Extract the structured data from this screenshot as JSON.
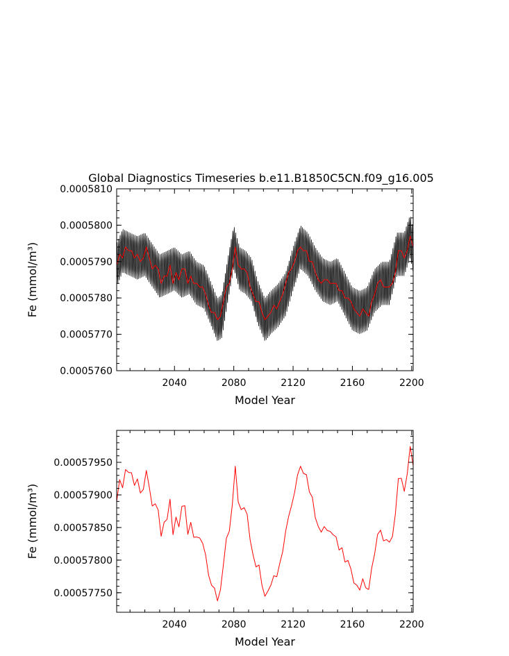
{
  "page": {
    "title": "Global Diagnostics Timeseries b.e11.B1850C5CN.f09_g16.005"
  },
  "colors": {
    "raw_series": "#000000",
    "smoothed_series": "#ff0000",
    "axes": "#000000",
    "background": "#ffffff"
  },
  "chart_data": [
    {
      "type": "line",
      "title": "Global Diagnostics Timeseries b.e11.B1850C5CN.f09_g16.005",
      "xlabel": "Model Year",
      "ylabel": "Fe (mmol/m³)",
      "xlim": [
        2001,
        2201
      ],
      "ylim": [
        0.000576,
        0.000581
      ],
      "xticks": [
        2040,
        2080,
        2120,
        2160,
        2200
      ],
      "yticks": [
        0.000576,
        0.000577,
        0.000578,
        0.000579,
        0.00058,
        0.000581
      ],
      "ytick_labels": [
        "0.0005760",
        "0.0005770",
        "0.0005780",
        "0.0005790",
        "0.0005800",
        "0.0005810"
      ],
      "grid": false,
      "legend": "none",
      "seasonal_amplitude": 6e-07,
      "series": [
        {
          "role": "monthly",
          "color": "#000000",
          "x": [
            2001,
            2005,
            2010,
            2015,
            2020,
            2025,
            2030,
            2035,
            2040,
            2045,
            2050,
            2055,
            2060,
            2065,
            2069,
            2072,
            2076,
            2080,
            2084,
            2088,
            2092,
            2096,
            2101,
            2105,
            2110,
            2115,
            2120,
            2125,
            2130,
            2135,
            2140,
            2145,
            2150,
            2155,
            2160,
            2165,
            2170,
            2175,
            2180,
            2185,
            2190,
            2195,
            2199,
            2201
          ],
          "y": [
            0.0005789,
            0.0005793,
            0.0005792,
            0.0005791,
            0.0005792,
            0.0005789,
            0.0005786,
            0.0005787,
            0.0005788,
            0.0005786,
            0.0005787,
            0.0005784,
            0.0005783,
            0.0005778,
            0.0005774,
            0.0005775,
            0.0005785,
            0.0005794,
            0.0005788,
            0.0005787,
            0.0005785,
            0.0005779,
            0.0005774,
            0.0005776,
            0.0005778,
            0.0005781,
            0.0005788,
            0.0005794,
            0.0005792,
            0.0005788,
            0.0005785,
            0.0005784,
            0.0005785,
            0.0005781,
            0.0005777,
            0.0005776,
            0.0005777,
            0.0005782,
            0.0005784,
            0.0005784,
            0.0005792,
            0.0005792,
            0.0005797,
            0.0005793
          ]
        },
        {
          "role": "annual mean",
          "color": "#ff0000",
          "x": [
            2001,
            2003,
            2005,
            2007,
            2009,
            2011,
            2013,
            2015,
            2017,
            2019,
            2021,
            2023,
            2025,
            2027,
            2029,
            2031,
            2033,
            2035,
            2037,
            2039,
            2041,
            2043,
            2045,
            2047,
            2049,
            2051,
            2053,
            2055,
            2057,
            2059,
            2061,
            2063,
            2065,
            2067,
            2069,
            2071,
            2073,
            2075,
            2077,
            2079,
            2081,
            2083,
            2085,
            2087,
            2089,
            2091,
            2093,
            2095,
            2097,
            2099,
            2101,
            2103,
            2105,
            2107,
            2109,
            2111,
            2113,
            2115,
            2117,
            2119,
            2121,
            2123,
            2125,
            2127,
            2129,
            2131,
            2133,
            2135,
            2137,
            2139,
            2141,
            2143,
            2145,
            2147,
            2149,
            2151,
            2153,
            2155,
            2157,
            2159,
            2161,
            2163,
            2165,
            2167,
            2169,
            2171,
            2173,
            2175,
            2177,
            2179,
            2181,
            2183,
            2185,
            2187,
            2189,
            2191,
            2193,
            2195,
            2197,
            2199,
            2201
          ],
          "y": [
            0.0005789,
            0.0005792,
            0.0005791,
            0.0005794,
            0.0005793,
            0.0005793,
            0.0005791,
            0.0005792,
            0.000579,
            0.0005791,
            0.0005794,
            0.0005791,
            0.0005788,
            0.0005789,
            0.0005788,
            0.0005784,
            0.0005786,
            0.0005786,
            0.0005789,
            0.0005784,
            0.0005787,
            0.0005785,
            0.0005788,
            0.0005788,
            0.0005784,
            0.0005786,
            0.0005784,
            0.0005784,
            0.0005783,
            0.0005783,
            0.0005781,
            0.0005778,
            0.0005776,
            0.0005776,
            0.0005774,
            0.0005775,
            0.0005779,
            0.0005783,
            0.0005784,
            0.0005788,
            0.0005794,
            0.0005789,
            0.0005788,
            0.0005788,
            0.0005787,
            0.0005783,
            0.0005781,
            0.0005779,
            0.0005779,
            0.0005776,
            0.0005774,
            0.0005775,
            0.0005776,
            0.0005778,
            0.0005777,
            0.0005779,
            0.0005781,
            0.0005784,
            0.0005787,
            0.0005788,
            0.000579,
            0.0005793,
            0.0005794,
            0.0005793,
            0.0005793,
            0.000579,
            0.000579,
            0.0005787,
            0.0005785,
            0.0005784,
            0.0005785,
            0.0005785,
            0.0005784,
            0.0005784,
            0.0005784,
            0.0005782,
            0.0005782,
            0.000578,
            0.000578,
            0.0005779,
            0.0005777,
            0.0005776,
            0.0005775,
            0.0005777,
            0.0005776,
            0.0005775,
            0.0005779,
            0.0005781,
            0.0005784,
            0.0005785,
            0.0005783,
            0.0005783,
            0.0005783,
            0.0005784,
            0.0005787,
            0.0005793,
            0.0005793,
            0.0005791,
            0.0005793,
            0.0005797,
            0.0005794
          ]
        }
      ]
    },
    {
      "type": "line",
      "title": "",
      "xlabel": "Model Year",
      "ylabel": "Fe (mmol/m³)",
      "xlim": [
        2001,
        2201
      ],
      "ylim": [
        0.0005772,
        0.00057999
      ],
      "xticks": [
        2040,
        2080,
        2120,
        2160,
        2200
      ],
      "yticks": [
        0.0005775,
        0.000578,
        0.0005785,
        0.000579,
        0.0005795
      ],
      "ytick_labels": [
        "0.00057750",
        "0.00057800",
        "0.00057850",
        "0.00057900",
        "0.00057950"
      ],
      "grid": false,
      "legend": "none",
      "series": [
        {
          "role": "annual mean",
          "color": "#ff0000",
          "x": [
            2001,
            2003,
            2005,
            2007,
            2009,
            2011,
            2013,
            2015,
            2017,
            2019,
            2021,
            2023,
            2025,
            2027,
            2029,
            2031,
            2033,
            2035,
            2037,
            2039,
            2041,
            2043,
            2045,
            2047,
            2049,
            2051,
            2053,
            2055,
            2057,
            2059,
            2061,
            2063,
            2065,
            2067,
            2069,
            2071,
            2073,
            2075,
            2077,
            2079,
            2081,
            2083,
            2085,
            2087,
            2089,
            2091,
            2093,
            2095,
            2097,
            2099,
            2101,
            2103,
            2105,
            2107,
            2109,
            2111,
            2113,
            2115,
            2117,
            2119,
            2121,
            2123,
            2125,
            2127,
            2129,
            2131,
            2133,
            2135,
            2137,
            2139,
            2141,
            2143,
            2145,
            2147,
            2149,
            2151,
            2153,
            2155,
            2157,
            2159,
            2161,
            2163,
            2165,
            2167,
            2169,
            2171,
            2173,
            2175,
            2177,
            2179,
            2181,
            2183,
            2185,
            2187,
            2189,
            2191,
            2193,
            2195,
            2197,
            2199,
            2201
          ],
          "y": [
            0.000578895,
            0.000579235,
            0.00057911,
            0.00057939,
            0.000579345,
            0.00057934,
            0.000579145,
            0.000579245,
            0.00057903,
            0.000579085,
            0.000579375,
            0.00057912,
            0.00057883,
            0.000578865,
            0.00057877,
            0.000578365,
            0.00057858,
            0.000578625,
            0.000578935,
            0.00057839,
            0.00057866,
            0.00057851,
            0.000578825,
            0.000578835,
            0.000578395,
            0.00057858,
            0.00057835,
            0.000578355,
            0.00057834,
            0.00057826,
            0.00057808,
            0.00057777,
            0.000577615,
            0.00057757,
            0.000577375,
            0.000577545,
            0.00057793,
            0.000578335,
            0.000578445,
            0.00057885,
            0.00057944,
            0.00057889,
            0.000578775,
            0.000578805,
            0.000578705,
            0.000578315,
            0.00057808,
            0.000577895,
            0.000577925,
            0.000577615,
            0.000577445,
            0.000577525,
            0.000577615,
            0.00057776,
            0.000577745,
            0.00057795,
            0.00057813,
            0.000578445,
            0.00057867,
            0.00057884,
            0.000579035,
            0.000579305,
            0.00057944,
            0.00057933,
            0.00057931,
            0.000579045,
            0.000578965,
            0.00057865,
            0.000578515,
            0.00057843,
            0.000578515,
            0.000578455,
            0.00057844,
            0.00057839,
            0.000578355,
            0.000578155,
            0.00057819,
            0.00057797,
            0.000577995,
            0.000577865,
            0.00057765,
            0.000577615,
            0.00057754,
            0.000577715,
            0.000577575,
            0.00057755,
            0.000577875,
            0.000578095,
            0.000578395,
            0.00057846,
            0.000578295,
            0.000578315,
            0.000578275,
            0.00057836,
            0.00057871,
            0.00057925,
            0.000579255,
            0.000579055,
            0.000579325,
            0.000579745,
            0.000579445
          ]
        }
      ]
    }
  ]
}
